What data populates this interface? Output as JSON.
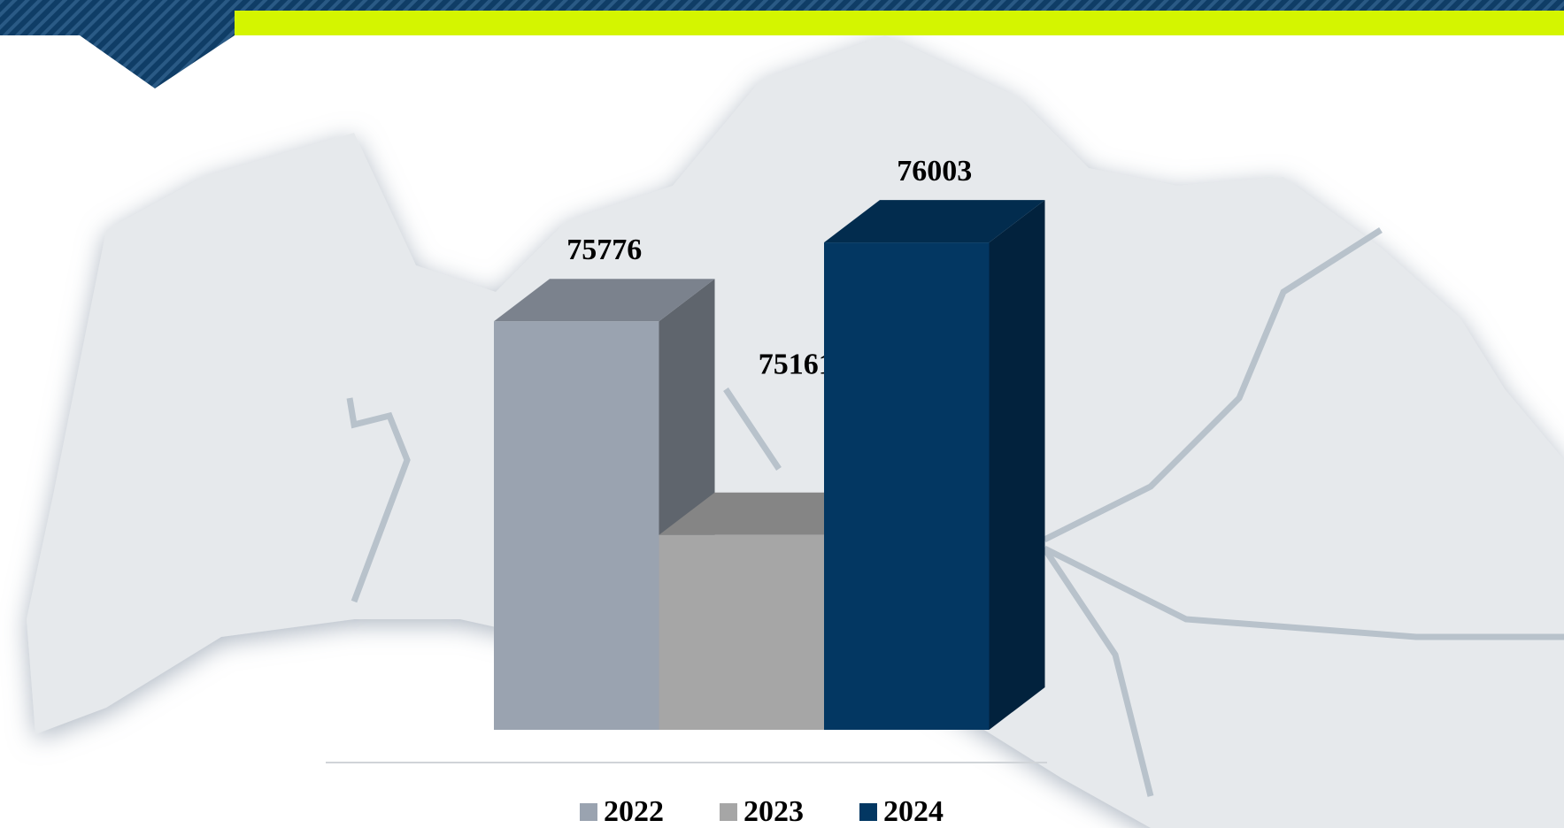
{
  "chart_data": {
    "type": "bar3d",
    "categories": [
      "2022",
      "2023",
      "2024"
    ],
    "values": [
      75776,
      75161,
      76003
    ],
    "colors": [
      "#9aa3b0",
      "#a6a6a6",
      "#033762"
    ],
    "ylim": [
      74600,
      76100
    ],
    "legend": "bottom"
  }
}
